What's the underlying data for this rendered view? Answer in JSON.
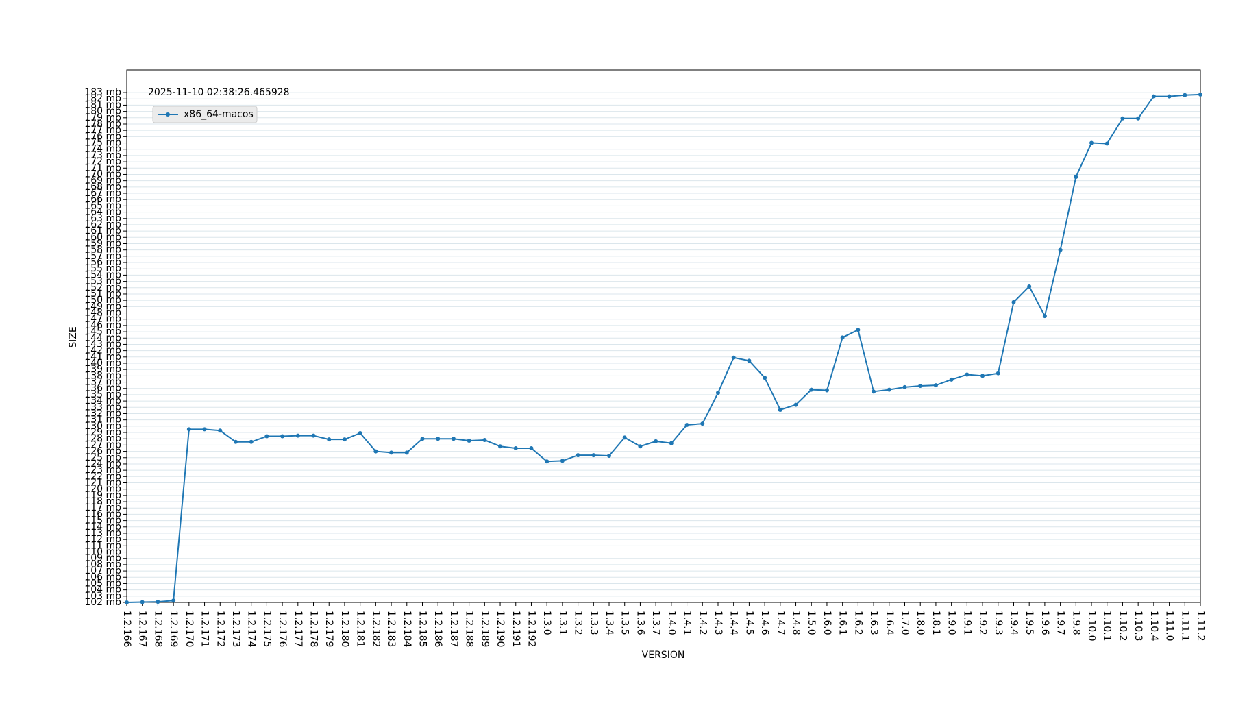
{
  "chart_data": {
    "type": "line",
    "annotation": "2025-11-10 02:38:26.465928",
    "xlabel": "VERSION",
    "ylabel": "SIZE",
    "categories": [
      "1.2.166",
      "1.2.167",
      "1.2.168",
      "1.2.169",
      "1.2.170",
      "1.2.171",
      "1.2.172",
      "1.2.173",
      "1.2.174",
      "1.2.175",
      "1.2.176",
      "1.2.177",
      "1.2.178",
      "1.2.179",
      "1.2.180",
      "1.2.181",
      "1.2.182",
      "1.2.183",
      "1.2.184",
      "1.2.185",
      "1.2.186",
      "1.2.187",
      "1.2.188",
      "1.2.189",
      "1.2.190",
      "1.2.191",
      "1.2.192",
      "1.3.0",
      "1.3.1",
      "1.3.2",
      "1.3.3",
      "1.3.4",
      "1.3.5",
      "1.3.6",
      "1.3.7",
      "1.4.0",
      "1.4.1",
      "1.4.2",
      "1.4.3",
      "1.4.4",
      "1.4.5",
      "1.4.6",
      "1.4.7",
      "1.4.8",
      "1.5.0",
      "1.6.0",
      "1.6.1",
      "1.6.2",
      "1.6.3",
      "1.6.4",
      "1.7.0",
      "1.8.0",
      "1.8.1",
      "1.9.0",
      "1.9.1",
      "1.9.2",
      "1.9.3",
      "1.9.4",
      "1.9.5",
      "1.9.6",
      "1.9.7",
      "1.9.8",
      "1.10.0",
      "1.10.1",
      "1.10.2",
      "1.10.3",
      "1.10.4",
      "1.11.0",
      "1.11.1",
      "1.11.2"
    ],
    "series": [
      {
        "name": "x86_64-macos",
        "color": "#1f77b4",
        "values": [
          102.0,
          102.05,
          102.1,
          102.3,
          129.5,
          129.5,
          129.3,
          127.5,
          127.5,
          128.4,
          128.4,
          128.5,
          128.5,
          127.9,
          127.9,
          128.9,
          126.0,
          125.8,
          125.8,
          128.0,
          128.0,
          128.0,
          127.7,
          127.8,
          126.8,
          126.5,
          126.5,
          124.4,
          124.5,
          125.4,
          125.4,
          125.3,
          128.2,
          126.8,
          127.6,
          127.3,
          130.2,
          130.4,
          135.3,
          140.9,
          140.4,
          137.7,
          132.6,
          133.4,
          135.8,
          135.7,
          144.1,
          145.3,
          135.5,
          135.8,
          136.2,
          136.4,
          136.5,
          137.4,
          138.2,
          138.0,
          138.4,
          149.7,
          152.2,
          147.5,
          158.0,
          169.6,
          175.0,
          174.9,
          178.9,
          178.9,
          182.4,
          182.4,
          182.6,
          182.7
        ]
      }
    ],
    "ylim": [
      102,
      186.6
    ],
    "yticks": [
      {
        "value": 102,
        "label": "102 mb"
      },
      {
        "value": 103,
        "label": "103 mb"
      },
      {
        "value": 104,
        "label": "104 mb"
      },
      {
        "value": 105,
        "label": "105 mb"
      },
      {
        "value": 106,
        "label": "106 mb"
      },
      {
        "value": 107,
        "label": "107 mb"
      },
      {
        "value": 108,
        "label": "108 mb"
      },
      {
        "value": 109,
        "label": "109 mb"
      },
      {
        "value": 110,
        "label": "110 mb"
      },
      {
        "value": 111,
        "label": "111 mb"
      },
      {
        "value": 112,
        "label": "112 mb"
      },
      {
        "value": 113,
        "label": "113 mb"
      },
      {
        "value": 114,
        "label": "114 mb"
      },
      {
        "value": 115,
        "label": "115 mb"
      },
      {
        "value": 116,
        "label": "116 mb"
      },
      {
        "value": 117,
        "label": "117 mb"
      },
      {
        "value": 118,
        "label": "118 mb"
      },
      {
        "value": 119,
        "label": "119 mb"
      },
      {
        "value": 120,
        "label": "120 mb"
      },
      {
        "value": 121,
        "label": "121 mb"
      },
      {
        "value": 122,
        "label": "122 mb"
      },
      {
        "value": 123,
        "label": "123 mb"
      },
      {
        "value": 124,
        "label": "124 mb"
      },
      {
        "value": 125,
        "label": "125 mb"
      },
      {
        "value": 126,
        "label": "126 mb"
      },
      {
        "value": 127,
        "label": "127 mb"
      },
      {
        "value": 128,
        "label": "128 mb"
      },
      {
        "value": 129,
        "label": "129 mb"
      },
      {
        "value": 130,
        "label": "130 mb"
      },
      {
        "value": 131,
        "label": "131 mb"
      },
      {
        "value": 132,
        "label": "132 mb"
      },
      {
        "value": 133,
        "label": "133 mb"
      },
      {
        "value": 134,
        "label": "134 mb"
      },
      {
        "value": 135,
        "label": "135 mb"
      },
      {
        "value": 136,
        "label": "136 mb"
      },
      {
        "value": 137,
        "label": "137 mb"
      },
      {
        "value": 138,
        "label": "138 mb"
      },
      {
        "value": 139,
        "label": "139 mb"
      },
      {
        "value": 140,
        "label": "140 mb"
      },
      {
        "value": 141,
        "label": "141 mb"
      },
      {
        "value": 142,
        "label": "142 mb"
      },
      {
        "value": 143,
        "label": "143 mb"
      },
      {
        "value": 144,
        "label": "144 mb"
      },
      {
        "value": 145,
        "label": "145 mb"
      },
      {
        "value": 146,
        "label": "146 mb"
      },
      {
        "value": 147,
        "label": "147 mb"
      },
      {
        "value": 148,
        "label": "148 mb"
      },
      {
        "value": 149,
        "label": "149 mb"
      },
      {
        "value": 150,
        "label": "150 mb"
      },
      {
        "value": 151,
        "label": "151 mb"
      },
      {
        "value": 152,
        "label": "152 mb"
      },
      {
        "value": 153,
        "label": "153 mb"
      },
      {
        "value": 154,
        "label": "154 mb"
      },
      {
        "value": 155,
        "label": "155 mb"
      },
      {
        "value": 156,
        "label": "156 mb"
      },
      {
        "value": 157,
        "label": "157 mb"
      },
      {
        "value": 158,
        "label": "158 mb"
      },
      {
        "value": 159,
        "label": "159 mb"
      },
      {
        "value": 160,
        "label": "160 mb"
      },
      {
        "value": 161,
        "label": "161 mb"
      },
      {
        "value": 162,
        "label": "162 mb"
      },
      {
        "value": 163,
        "label": "163 mb"
      },
      {
        "value": 164,
        "label": "164 mb"
      },
      {
        "value": 165,
        "label": "165 mb"
      },
      {
        "value": 166,
        "label": "166 mb"
      },
      {
        "value": 167,
        "label": "167 mb"
      },
      {
        "value": 168,
        "label": "168 mb"
      },
      {
        "value": 169,
        "label": "169 mb"
      },
      {
        "value": 170,
        "label": "170 mb"
      },
      {
        "value": 171,
        "label": "171 mb"
      },
      {
        "value": 172,
        "label": "172 mb"
      },
      {
        "value": 173,
        "label": "173 mb"
      },
      {
        "value": 174,
        "label": "174 mb"
      },
      {
        "value": 175,
        "label": "175 mb"
      },
      {
        "value": 176,
        "label": "176 mb"
      },
      {
        "value": 177,
        "label": "177 mb"
      },
      {
        "value": 178,
        "label": "178 mb"
      },
      {
        "value": 179,
        "label": "179 mb"
      },
      {
        "value": 180,
        "label": "180 mb"
      },
      {
        "value": 181,
        "label": "181 mb"
      },
      {
        "value": 182,
        "label": "182 mb"
      },
      {
        "value": 183,
        "label": "183 mb"
      }
    ],
    "grid": true,
    "legend": "upper left"
  }
}
